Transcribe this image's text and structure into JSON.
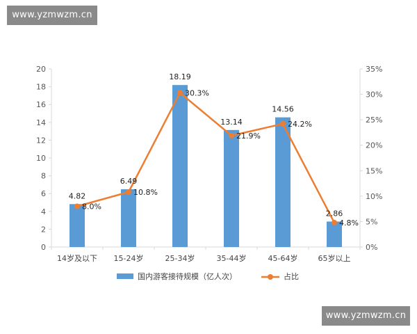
{
  "watermarks": {
    "top": "www.yzmwzm.cn",
    "bottom": "www.yzmwzm.cn"
  },
  "colors": {
    "bar": "#5b9bd5",
    "line": "#ed7d31",
    "axis": "#d9d9d9",
    "text": "#444444"
  },
  "chart_data": {
    "type": "bar",
    "title": "",
    "categories": [
      "14岁及以下",
      "15-24岁",
      "25-34岁",
      "35-44岁",
      "45-64岁",
      "65岁以上"
    ],
    "series": [
      {
        "name": "国内游客接待规模（亿人次）",
        "type": "bar",
        "axis": "left",
        "values": [
          4.82,
          6.49,
          18.19,
          13.14,
          14.56,
          2.86
        ],
        "labels": [
          "4.82",
          "6.49",
          "18.19",
          "13.14",
          "14.56",
          "2.86"
        ]
      },
      {
        "name": "占比",
        "type": "line",
        "axis": "right",
        "values": [
          8.0,
          10.8,
          30.3,
          21.9,
          24.2,
          4.8
        ],
        "labels": [
          "8.0%",
          "10.8%",
          "30.3%",
          "21.9%",
          "24.2%",
          "4.8%"
        ]
      }
    ],
    "y_left": {
      "min": 0,
      "max": 20,
      "ticks": [
        0,
        2,
        4,
        6,
        8,
        10,
        12,
        14,
        16,
        18,
        20
      ],
      "tick_labels": [
        "0",
        "2",
        "4",
        "6",
        "8",
        "10",
        "12",
        "14",
        "16",
        "18",
        "20"
      ]
    },
    "y_right": {
      "min": 0,
      "max": 35,
      "ticks": [
        0,
        5,
        10,
        15,
        20,
        25,
        30,
        35
      ],
      "tick_labels": [
        "0%",
        "5%",
        "10%",
        "15%",
        "20%",
        "25%",
        "30%",
        "35%"
      ]
    },
    "grid": false,
    "legend": "bottom"
  }
}
